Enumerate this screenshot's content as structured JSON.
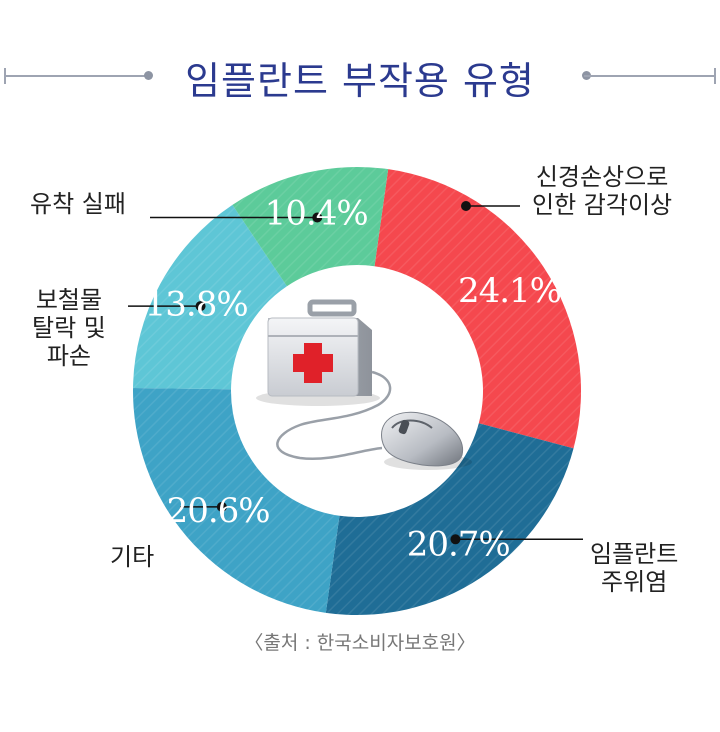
{
  "title": "임플란트 부작용 유형",
  "source": "〈출처 : 한국소비자보호원〉",
  "colors": {
    "title": "#2b3a8f",
    "label_line": "#111111",
    "slice_text": "#ffffff"
  },
  "icons": [
    "first-aid-kit-icon",
    "computer-mouse-icon"
  ],
  "chart_data": {
    "type": "pie",
    "donut": true,
    "unit": "%",
    "slices": [
      {
        "label": "신경손상으로 인한 감각이상",
        "label_lines": [
          "신경손상으로",
          "인한 감각이상"
        ],
        "value": 24.1,
        "value_text": "24.1%",
        "color": "#f5484e"
      },
      {
        "label": "임플란트 주위염",
        "label_lines": [
          "임플란트",
          "주위염"
        ],
        "value": 20.7,
        "value_text": "20.7%",
        "color": "#1f6d96"
      },
      {
        "label": "기타",
        "label_lines": [
          "기타"
        ],
        "value": 20.6,
        "value_text": "20.6%",
        "color": "#3ea3c6"
      },
      {
        "label": "보철물 탈락 및 파손",
        "label_lines": [
          "보철물",
          "탈락 및",
          "파손"
        ],
        "value": 13.8,
        "value_text": "13.8%",
        "color": "#5ec6d6"
      },
      {
        "label": "유착 실패",
        "label_lines": [
          "유착 실패"
        ],
        "value": 10.4,
        "value_text": "10.4%",
        "color": "#5ccb9a"
      }
    ]
  }
}
